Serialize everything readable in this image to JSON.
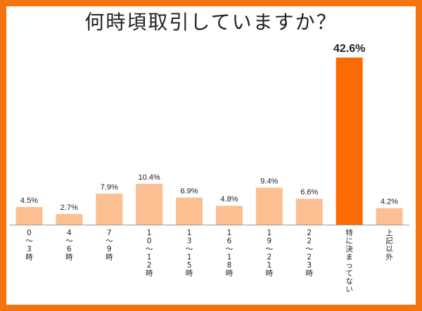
{
  "chart_data": {
    "type": "bar",
    "title": "何時頃取引していますか？",
    "categories": [
      "0～3時",
      "4～6時",
      "7～9時",
      "10～12時",
      "13～15時",
      "16～18時",
      "19～21時",
      "22～23時",
      "特に決まってない",
      "上記以外"
    ],
    "values": [
      4.5,
      2.7,
      7.9,
      10.4,
      6.9,
      4.8,
      9.4,
      6.6,
      42.6,
      4.2
    ],
    "value_labels": [
      "4.5%",
      "2.7%",
      "7.9%",
      "10.4%",
      "6.9%",
      "4.8%",
      "9.4%",
      "6.6%",
      "42.6%",
      "4.2%"
    ],
    "highlight_index": 8,
    "xlabel": "",
    "ylabel": "",
    "ylim": [
      0,
      42.6
    ],
    "grid": false,
    "legend": "none"
  },
  "colors": {
    "frame": "#f4740f",
    "bar": "#fbbf92",
    "bar_highlight": "#fc6a04",
    "baseline": "#999999",
    "text": "#222222"
  }
}
